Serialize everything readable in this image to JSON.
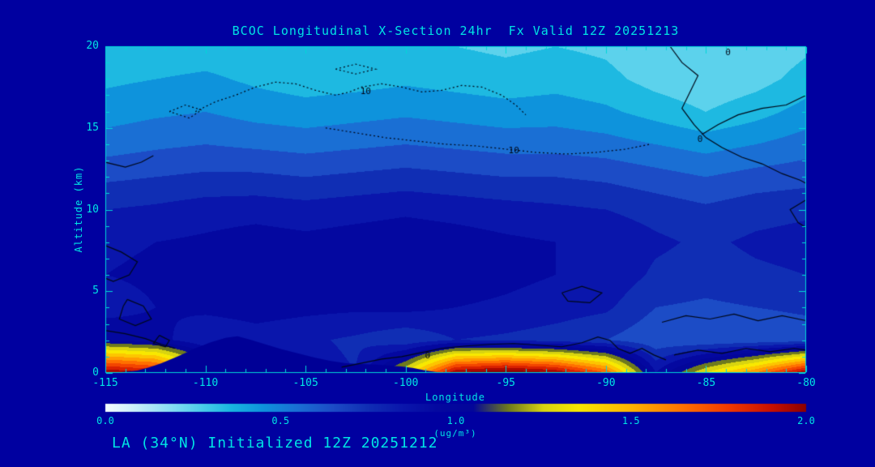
{
  "page": {
    "background": "#0000A0",
    "text_color": "#00E4E4",
    "axis_color": "#00D8D8",
    "contour_color": "#000818",
    "terrain_color": "#000096"
  },
  "chart": {
    "title": "BCOC Longitudinal X-Section 24hr  Fx Valid 12Z 20251213",
    "footer": "LA (34°N) Initialized 12Z 20251212",
    "xlabel": "Longitude",
    "ylabel": "Altitude (km)",
    "units": "(ug/m³)"
  },
  "chart_data": {
    "type": "heatmap",
    "title": "BCOC Longitudinal X-Section 24hr  Fx Valid 12Z 20251213",
    "xlabel": "Longitude",
    "ylabel": "Altitude (km)",
    "xlim": [
      -115,
      -80
    ],
    "ylim": [
      0,
      20
    ],
    "x_ticks": [
      -115,
      -110,
      -105,
      -100,
      -95,
      -90,
      -85,
      -80
    ],
    "y_ticks": [
      0,
      5,
      10,
      15,
      20
    ],
    "colorbar": {
      "ticks": [
        "0.0",
        "0.5",
        "1.0",
        "1.5",
        "2.0"
      ],
      "range": [
        0,
        2
      ],
      "units": "(ug/m³)"
    },
    "colormap": [
      [
        0.0,
        "#f4fdff"
      ],
      [
        0.06,
        "#d8f4fc"
      ],
      [
        0.12,
        "#b4e8f8"
      ],
      [
        0.2,
        "#7edcf2"
      ],
      [
        0.28,
        "#48cce9"
      ],
      [
        0.36,
        "#18b6e0"
      ],
      [
        0.45,
        "#0e93dc"
      ],
      [
        0.55,
        "#1a6fd4"
      ],
      [
        0.65,
        "#1c4cc6"
      ],
      [
        0.75,
        "#102eb4"
      ],
      [
        0.85,
        "#0a16ac"
      ],
      [
        0.95,
        "#0408a0"
      ],
      [
        1.05,
        "#03069a"
      ],
      [
        1.15,
        "#6e7a1e"
      ],
      [
        1.25,
        "#d8d410"
      ],
      [
        1.35,
        "#f8e800"
      ],
      [
        1.5,
        "#ffb400"
      ],
      [
        1.65,
        "#ff7000"
      ],
      [
        1.78,
        "#f03800"
      ],
      [
        1.9,
        "#c81000"
      ],
      [
        2.0,
        "#8c0000"
      ]
    ],
    "grid": {
      "lon": [
        -115,
        -112.5,
        -110,
        -107.5,
        -105,
        -102.5,
        -100,
        -97.5,
        -95,
        -92.5,
        -90,
        -87.5,
        -85,
        -82.5,
        -80
      ],
      "alt": [
        0,
        2,
        4,
        6,
        8,
        10,
        12,
        14,
        16,
        18,
        20
      ],
      "values": [
        [
          2.0,
          1.9,
          1.3,
          0.9,
          0.85,
          0.8,
          1.3,
          2.0,
          2.1,
          2.0,
          1.7,
          0.9,
          1.3,
          1.6,
          2.0
        ],
        [
          1.0,
          0.95,
          0.8,
          0.85,
          0.82,
          0.78,
          0.72,
          0.8,
          0.78,
          0.75,
          0.7,
          0.62,
          0.6,
          0.62,
          0.64
        ],
        [
          0.85,
          0.9,
          0.93,
          0.95,
          0.93,
          0.92,
          0.93,
          0.9,
          0.88,
          0.85,
          0.82,
          0.7,
          0.68,
          0.7,
          0.72
        ],
        [
          0.9,
          0.92,
          0.95,
          0.97,
          0.95,
          0.97,
          0.98,
          0.96,
          0.93,
          0.9,
          0.88,
          0.78,
          0.75,
          0.78,
          0.8
        ],
        [
          0.88,
          0.9,
          0.92,
          0.95,
          0.93,
          0.95,
          0.97,
          0.95,
          0.92,
          0.9,
          0.88,
          0.82,
          0.78,
          0.82,
          0.84
        ],
        [
          0.8,
          0.82,
          0.85,
          0.86,
          0.84,
          0.86,
          0.88,
          0.86,
          0.84,
          0.82,
          0.8,
          0.76,
          0.72,
          0.76,
          0.78
        ],
        [
          0.68,
          0.7,
          0.72,
          0.72,
          0.7,
          0.72,
          0.74,
          0.72,
          0.7,
          0.7,
          0.68,
          0.64,
          0.6,
          0.64,
          0.66
        ],
        [
          0.55,
          0.58,
          0.6,
          0.58,
          0.56,
          0.58,
          0.6,
          0.58,
          0.56,
          0.56,
          0.54,
          0.5,
          0.46,
          0.5,
          0.55
        ],
        [
          0.45,
          0.48,
          0.5,
          0.46,
          0.44,
          0.46,
          0.48,
          0.46,
          0.44,
          0.45,
          0.42,
          0.36,
          0.3,
          0.36,
          0.44
        ],
        [
          0.38,
          0.4,
          0.42,
          0.38,
          0.35,
          0.36,
          0.38,
          0.36,
          0.34,
          0.36,
          0.33,
          0.26,
          0.22,
          0.26,
          0.34
        ],
        [
          0.32,
          0.33,
          0.34,
          0.32,
          0.3,
          0.32,
          0.33,
          0.3,
          0.28,
          0.3,
          0.28,
          0.22,
          0.2,
          0.22,
          0.28
        ]
      ]
    },
    "terrain": [
      [
        -115,
        0
      ],
      [
        -114.2,
        0.05
      ],
      [
        -113.4,
        0.15
      ],
      [
        -112.8,
        0.35
      ],
      [
        -112.2,
        0.6
      ],
      [
        -111.4,
        1.0
      ],
      [
        -110.6,
        1.45
      ],
      [
        -109.8,
        1.85
      ],
      [
        -109.0,
        2.15
      ],
      [
        -108.4,
        2.25
      ],
      [
        -107.8,
        2.05
      ],
      [
        -107.0,
        1.75
      ],
      [
        -106.2,
        1.45
      ],
      [
        -105.4,
        1.2
      ],
      [
        -104.6,
        0.95
      ],
      [
        -103.8,
        0.75
      ],
      [
        -103.0,
        0.6
      ],
      [
        -102.2,
        0.55
      ],
      [
        -101.4,
        0.5
      ],
      [
        -100.8,
        0.45
      ],
      [
        -100.2,
        0.4
      ],
      [
        -99.6,
        0.3
      ],
      [
        -99.0,
        0.15
      ],
      [
        -98.4,
        0.05
      ],
      [
        -98.0,
        0
      ]
    ],
    "contours": [
      {
        "style": "dotted",
        "label": "10",
        "labels_at": [
          [
            -102.0,
            17.2
          ]
        ],
        "points": [
          [
            -110.5,
            16.0
          ],
          [
            -109.5,
            16.6
          ],
          [
            -108.5,
            17.0
          ],
          [
            -107.5,
            17.5
          ],
          [
            -106.5,
            17.8
          ],
          [
            -105.5,
            17.7
          ],
          [
            -104.5,
            17.3
          ],
          [
            -103.5,
            17.0
          ],
          [
            -102.8,
            17.2
          ],
          [
            -102.2,
            17.5
          ],
          [
            -101.2,
            17.7
          ],
          [
            -100.2,
            17.5
          ],
          [
            -99.2,
            17.2
          ],
          [
            -98.2,
            17.3
          ],
          [
            -97.2,
            17.6
          ],
          [
            -96.2,
            17.5
          ],
          [
            -95.2,
            17.0
          ],
          [
            -94.5,
            16.4
          ],
          [
            -94.0,
            15.8
          ]
        ]
      },
      {
        "style": "dotted",
        "label": "10",
        "labels_at": [
          [
            -94.6,
            13.6
          ]
        ],
        "points": [
          [
            -104.0,
            15.0
          ],
          [
            -102.5,
            14.7
          ],
          [
            -101.0,
            14.4
          ],
          [
            -99.5,
            14.2
          ],
          [
            -98.0,
            14.0
          ],
          [
            -96.5,
            13.9
          ],
          [
            -95.0,
            13.7
          ],
          [
            -93.5,
            13.5
          ],
          [
            -92.0,
            13.4
          ],
          [
            -90.5,
            13.5
          ],
          [
            -89.0,
            13.7
          ],
          [
            -87.8,
            14.0
          ]
        ]
      },
      {
        "style": "dotted",
        "points": [
          [
            -111.8,
            16.0
          ],
          [
            -111.0,
            16.4
          ],
          [
            -110.2,
            16.1
          ],
          [
            -110.8,
            15.6
          ],
          [
            -111.8,
            16.0
          ]
        ]
      },
      {
        "style": "dotted",
        "points": [
          [
            -103.5,
            18.6
          ],
          [
            -102.5,
            18.9
          ],
          [
            -101.5,
            18.6
          ],
          [
            -102.5,
            18.3
          ],
          [
            -103.5,
            18.6
          ]
        ]
      },
      {
        "style": "solid",
        "label": "0",
        "labels_at": [
          [
            -83.9,
            19.6
          ],
          [
            -85.3,
            14.3
          ]
        ],
        "points": [
          [
            -86.8,
            20.0
          ],
          [
            -86.2,
            19.0
          ],
          [
            -85.4,
            18.2
          ],
          [
            -85.8,
            17.2
          ],
          [
            -86.2,
            16.2
          ],
          [
            -85.6,
            15.2
          ],
          [
            -85.0,
            14.4
          ],
          [
            -84.2,
            13.8
          ],
          [
            -83.2,
            13.2
          ],
          [
            -82.2,
            12.8
          ],
          [
            -81.2,
            12.2
          ],
          [
            -80.3,
            11.8
          ],
          [
            -80.0,
            11.6
          ]
        ]
      },
      {
        "style": "solid",
        "points": [
          [
            -80.0,
            17.0
          ],
          [
            -81.0,
            16.4
          ],
          [
            -82.2,
            16.2
          ],
          [
            -83.4,
            15.8
          ],
          [
            -84.4,
            15.2
          ],
          [
            -85.2,
            14.6
          ]
        ]
      },
      {
        "style": "solid",
        "points": [
          [
            -80.0,
            10.6
          ],
          [
            -80.8,
            10.0
          ],
          [
            -80.4,
            9.2
          ],
          [
            -80.0,
            8.9
          ]
        ]
      },
      {
        "style": "solid",
        "points": [
          [
            -115.0,
            7.8
          ],
          [
            -114.2,
            7.4
          ],
          [
            -113.4,
            6.8
          ],
          [
            -113.8,
            6.0
          ],
          [
            -114.6,
            5.6
          ],
          [
            -115.0,
            5.8
          ]
        ]
      },
      {
        "style": "solid",
        "points": [
          [
            -113.9,
            4.5
          ],
          [
            -113.1,
            4.1
          ],
          [
            -112.7,
            3.3
          ],
          [
            -113.5,
            2.9
          ],
          [
            -114.3,
            3.3
          ],
          [
            -114.1,
            4.1
          ],
          [
            -113.9,
            4.5
          ]
        ]
      },
      {
        "style": "solid",
        "points": [
          [
            -112.3,
            2.3
          ],
          [
            -111.8,
            2.0
          ],
          [
            -112.0,
            1.6
          ],
          [
            -112.6,
            1.8
          ],
          [
            -112.3,
            2.3
          ]
        ]
      },
      {
        "style": "solid",
        "points": [
          [
            -115.0,
            12.9
          ],
          [
            -114.0,
            12.6
          ],
          [
            -113.2,
            12.9
          ],
          [
            -112.6,
            13.3
          ]
        ]
      },
      {
        "style": "solid",
        "points": [
          [
            -115.0,
            2.6
          ],
          [
            -114.0,
            2.4
          ],
          [
            -113.0,
            2.1
          ],
          [
            -112.2,
            1.75
          ],
          [
            -111.5,
            1.5
          ]
        ]
      },
      {
        "style": "solid",
        "label": "0",
        "labels_at": [
          [
            -98.9,
            1.05
          ]
        ],
        "points": [
          [
            -103.2,
            0.35
          ],
          [
            -102.2,
            0.6
          ],
          [
            -101.2,
            0.85
          ],
          [
            -100.2,
            1.0
          ],
          [
            -99.2,
            1.25
          ],
          [
            -98.2,
            1.5
          ],
          [
            -97.0,
            1.65
          ],
          [
            -95.8,
            1.75
          ],
          [
            -94.6,
            1.8
          ],
          [
            -93.4,
            1.7
          ],
          [
            -92.2,
            1.6
          ],
          [
            -91.2,
            1.85
          ],
          [
            -90.4,
            2.2
          ],
          [
            -89.8,
            2.0
          ],
          [
            -89.4,
            1.5
          ],
          [
            -88.8,
            1.2
          ],
          [
            -88.2,
            1.5
          ],
          [
            -87.6,
            1.1
          ],
          [
            -87.0,
            0.8
          ]
        ]
      },
      {
        "style": "solid",
        "points": [
          [
            -92.2,
            4.9
          ],
          [
            -91.2,
            5.3
          ],
          [
            -90.2,
            4.9
          ],
          [
            -90.8,
            4.3
          ],
          [
            -91.9,
            4.4
          ],
          [
            -92.2,
            4.9
          ]
        ]
      },
      {
        "style": "solid",
        "points": [
          [
            -87.2,
            3.1
          ],
          [
            -86.0,
            3.5
          ],
          [
            -84.8,
            3.3
          ],
          [
            -83.6,
            3.6
          ],
          [
            -82.4,
            3.2
          ],
          [
            -81.2,
            3.5
          ],
          [
            -80.0,
            3.2
          ]
        ]
      },
      {
        "style": "solid",
        "points": [
          [
            -86.6,
            1.1
          ],
          [
            -85.4,
            1.4
          ],
          [
            -84.2,
            1.2
          ],
          [
            -83.0,
            1.5
          ],
          [
            -81.8,
            1.3
          ],
          [
            -80.6,
            1.5
          ],
          [
            -80.0,
            1.4
          ]
        ]
      }
    ]
  }
}
